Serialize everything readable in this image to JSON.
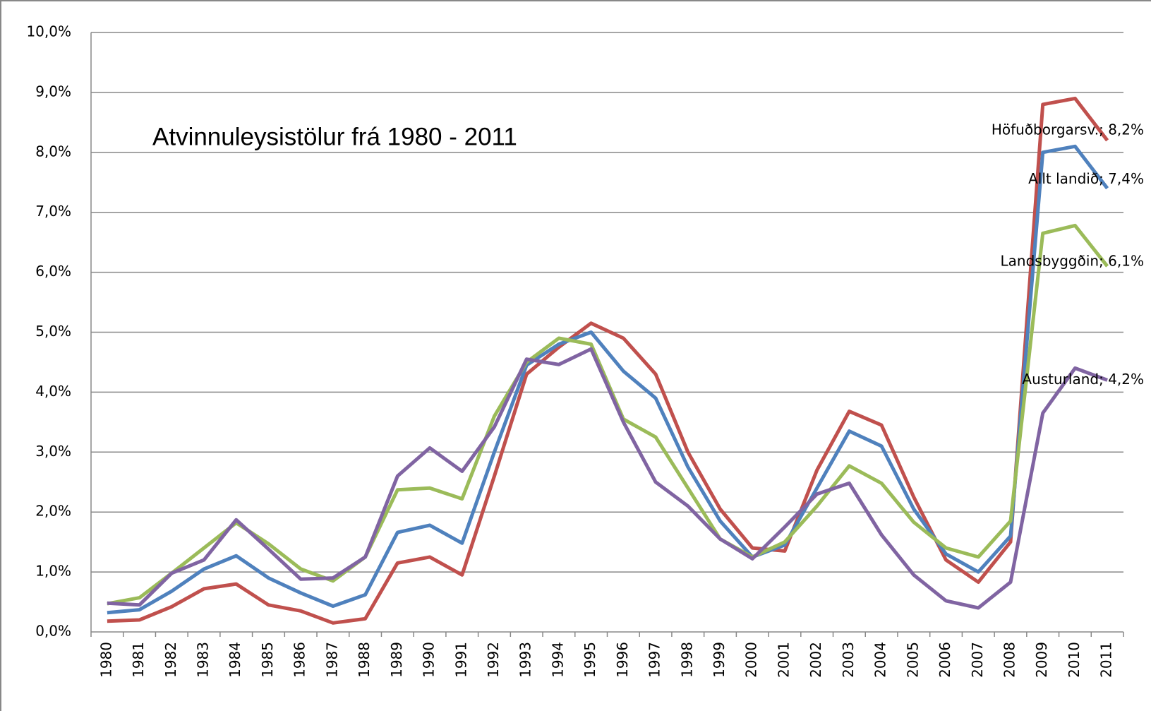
{
  "chart_data": {
    "type": "line",
    "title": "Atvinnuleysistölur frá 1980 - 2011",
    "categories": [
      "1980",
      "1981",
      "1982",
      "1983",
      "1984",
      "1985",
      "1986",
      "1987",
      "1988",
      "1989",
      "1990",
      "1991",
      "1992",
      "1993",
      "1994",
      "1995",
      "1996",
      "1997",
      "1998",
      "1999",
      "2000",
      "2001",
      "2002",
      "2003",
      "2004",
      "2005",
      "2006",
      "2007",
      "2008",
      "2009",
      "2010",
      "2011"
    ],
    "series": [
      {
        "label": "Höfuðborgarsv.; 8,2%",
        "color": "#c0504d",
        "values": [
          0.18,
          0.2,
          0.42,
          0.72,
          0.8,
          0.45,
          0.35,
          0.15,
          0.22,
          1.15,
          1.25,
          0.95,
          2.6,
          4.3,
          4.75,
          5.15,
          4.9,
          4.3,
          3.0,
          2.05,
          1.4,
          1.35,
          2.7,
          3.68,
          3.45,
          2.25,
          1.2,
          0.83,
          1.5,
          8.8,
          8.9,
          8.2
        ]
      },
      {
        "label": "Allt landið; 7,4%",
        "color": "#4f81bd",
        "values": [
          0.32,
          0.37,
          0.68,
          1.05,
          1.27,
          0.9,
          0.65,
          0.43,
          0.62,
          1.66,
          1.78,
          1.48,
          3.0,
          4.45,
          4.8,
          5.0,
          4.35,
          3.9,
          2.75,
          1.85,
          1.25,
          1.45,
          2.4,
          3.35,
          3.1,
          2.05,
          1.3,
          1.0,
          1.6,
          8.0,
          8.1,
          7.4
        ]
      },
      {
        "label": "Landsbyggðin; 6,1%",
        "color": "#9bbb59",
        "values": [
          0.47,
          0.57,
          0.98,
          1.4,
          1.82,
          1.47,
          1.05,
          0.85,
          1.25,
          2.37,
          2.4,
          2.22,
          3.6,
          4.5,
          4.9,
          4.8,
          3.55,
          3.25,
          2.4,
          1.55,
          1.25,
          1.5,
          2.1,
          2.77,
          2.48,
          1.83,
          1.4,
          1.25,
          1.85,
          6.65,
          6.78,
          6.1
        ]
      },
      {
        "label": "Austurland; 4,2%",
        "color": "#8064a2",
        "values": [
          0.48,
          0.45,
          0.98,
          1.2,
          1.87,
          1.38,
          0.88,
          0.9,
          1.25,
          2.6,
          3.07,
          2.68,
          3.42,
          4.55,
          4.46,
          4.72,
          3.5,
          2.5,
          2.1,
          1.55,
          1.22,
          1.75,
          2.3,
          2.48,
          1.62,
          0.95,
          0.52,
          0.4,
          0.83,
          3.65,
          4.4,
          4.2
        ]
      }
    ],
    "ylim": [
      0,
      10
    ],
    "yticks": [
      {
        "value": 0,
        "label": "0,0%"
      },
      {
        "value": 1,
        "label": "1,0%"
      },
      {
        "value": 2,
        "label": "2,0%"
      },
      {
        "value": 3,
        "label": "3,0%"
      },
      {
        "value": 4,
        "label": "4,0%"
      },
      {
        "value": 5,
        "label": "5,0%"
      },
      {
        "value": 6,
        "label": "6,0%"
      },
      {
        "value": 7,
        "label": "7,0%"
      },
      {
        "value": 8,
        "label": "8,0%"
      },
      {
        "value": 9,
        "label": "9,0%"
      },
      {
        "value": 10,
        "label": "10,0%"
      }
    ],
    "grid": true
  }
}
